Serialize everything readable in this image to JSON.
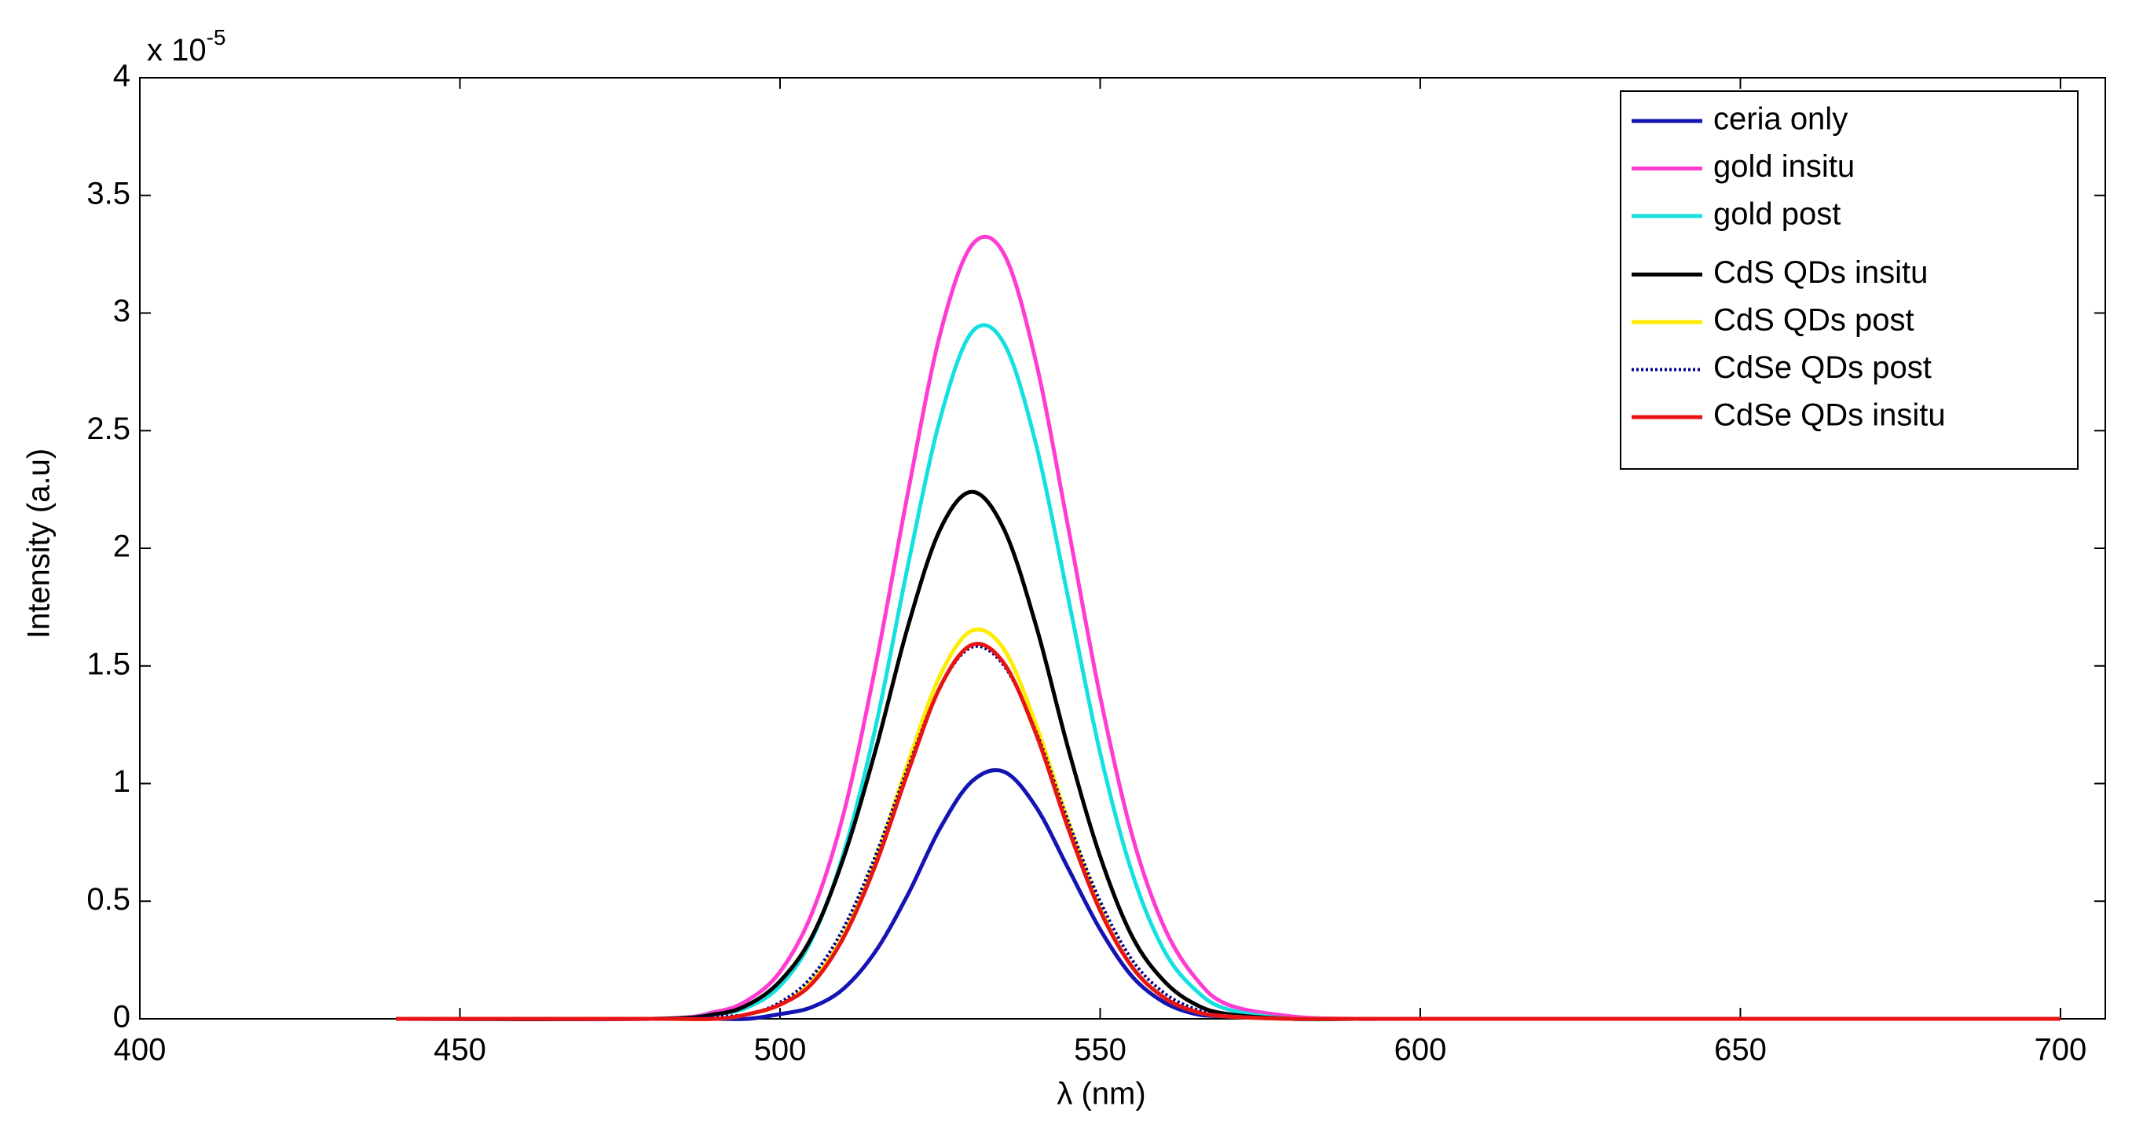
{
  "chart_data": {
    "type": "line",
    "y_multiplier": {
      "base": "x 10",
      "exponent": "-5"
    },
    "xlabel": "λ (nm)",
    "ylabel": "Intensity (a.u)",
    "x": [
      440,
      480,
      490,
      495,
      500,
      505,
      510,
      515,
      520,
      525,
      530,
      535,
      540,
      545,
      550,
      555,
      560,
      565,
      570,
      580,
      590,
      600,
      650,
      700
    ],
    "series": [
      {
        "name": "ceria only",
        "color": "#1414b4",
        "values": [
          0,
          0,
          0,
          0,
          0.02,
          0.05,
          0.13,
          0.29,
          0.53,
          0.81,
          1.01,
          1.05,
          0.9,
          0.64,
          0.38,
          0.18,
          0.07,
          0.02,
          0.01,
          0,
          0,
          0,
          0,
          0
        ]
      },
      {
        "name": "gold insitu",
        "color": "#ff3cd2",
        "values": [
          0,
          0,
          0.03,
          0.08,
          0.2,
          0.45,
          0.88,
          1.51,
          2.24,
          2.91,
          3.29,
          3.25,
          2.79,
          2.09,
          1.37,
          0.78,
          0.39,
          0.17,
          0.06,
          0.01,
          0,
          0,
          0,
          0
        ]
      },
      {
        "name": "gold post",
        "color": "#14e0e0",
        "values": [
          0,
          0,
          0.02,
          0.05,
          0.14,
          0.34,
          0.71,
          1.25,
          1.93,
          2.55,
          2.92,
          2.87,
          2.44,
          1.79,
          1.13,
          0.62,
          0.29,
          0.12,
          0.04,
          0,
          0,
          0,
          0,
          0
        ]
      },
      {
        "name": "CdS QDs insitu",
        "color": "#000000",
        "values": [
          0,
          0,
          0.02,
          0.06,
          0.16,
          0.35,
          0.69,
          1.15,
          1.67,
          2.08,
          2.24,
          2.08,
          1.67,
          1.15,
          0.69,
          0.35,
          0.16,
          0.06,
          0.02,
          0,
          0,
          0,
          0,
          0
        ]
      },
      {
        "name": "CdS QDs post",
        "color": "#ffec00",
        "values": [
          0,
          0,
          0,
          0.02,
          0.06,
          0.16,
          0.36,
          0.68,
          1.09,
          1.46,
          1.65,
          1.57,
          1.25,
          0.84,
          0.47,
          0.22,
          0.09,
          0.03,
          0.01,
          0,
          0,
          0,
          0,
          0
        ]
      },
      {
        "name": "CdSe QDs post",
        "color": "#00008c",
        "style": "dotted",
        "values": [
          0,
          0,
          0.01,
          0.02,
          0.07,
          0.18,
          0.39,
          0.7,
          1.07,
          1.41,
          1.58,
          1.5,
          1.22,
          0.84,
          0.5,
          0.25,
          0.11,
          0.04,
          0.01,
          0,
          0,
          0,
          0,
          0
        ]
      },
      {
        "name": "CdSe QDs insitu",
        "color": "#e81414",
        "values": [
          0,
          0,
          0,
          0.02,
          0.06,
          0.15,
          0.35,
          0.66,
          1.05,
          1.41,
          1.59,
          1.51,
          1.21,
          0.81,
          0.46,
          0.22,
          0.09,
          0.03,
          0.01,
          0,
          0,
          0,
          0,
          0
        ]
      }
    ],
    "xlim": [
      400,
      707
    ],
    "xticks": [
      400,
      450,
      500,
      550,
      600,
      650,
      700
    ],
    "ylim": [
      0,
      4
    ],
    "yticks": [
      0,
      0.5,
      1,
      1.5,
      2,
      2.5,
      3,
      3.5,
      4
    ],
    "grid": false,
    "legend": "upper right"
  }
}
